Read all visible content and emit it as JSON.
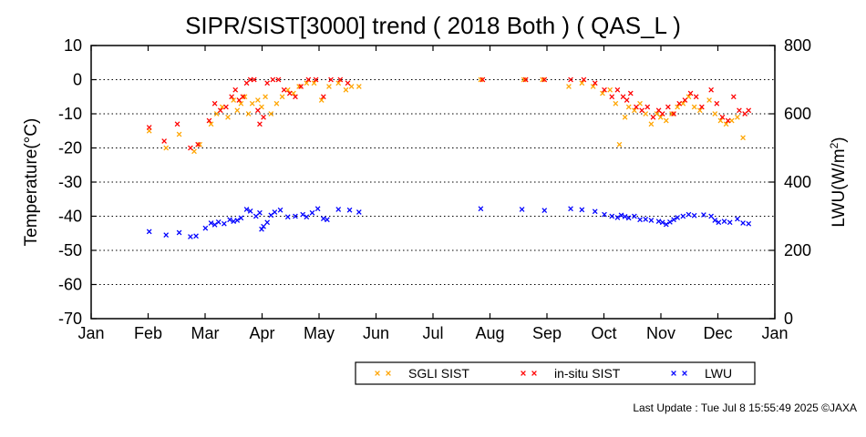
{
  "chart_data": {
    "type": "scatter",
    "title": "SIPR/SIST[3000] trend ( 2018 Both ) ( QAS_L )",
    "ylabel": "Temperature(°C)",
    "y2label_main": "LWU(W/m",
    "y2label_sup": "2",
    "y2label_end": ")",
    "ylim": [
      -70,
      10
    ],
    "y2lim": [
      0,
      800
    ],
    "yticks": [
      10,
      0,
      -10,
      -20,
      -30,
      -40,
      -50,
      -60,
      -70
    ],
    "y2ticks": [
      800,
      600,
      400,
      200,
      0
    ],
    "grid": "horizontal dotted at y = 0, -10, -20, -30, -40, -50, -60",
    "xlim": [
      "2018-01-01",
      "2019-01-01"
    ],
    "xticks": [
      "Jan",
      "Feb",
      "Mar",
      "Apr",
      "May",
      "Jun",
      "Jul",
      "Aug",
      "Sep",
      "Oct",
      "Nov",
      "Dec",
      "Jan"
    ],
    "legend_position": "bottom-right, below plot",
    "series": [
      {
        "name": "SGLI SIST",
        "color": "#ffa500",
        "axis": "left",
        "points": [
          [
            "2018-02-01",
            -15
          ],
          [
            "2018-02-10",
            -20
          ],
          [
            "2018-02-17",
            -16
          ],
          [
            "2018-02-25",
            -21
          ],
          [
            "2018-02-28",
            -19
          ],
          [
            "2018-03-06",
            -13
          ],
          [
            "2018-03-09",
            -10
          ],
          [
            "2018-03-12",
            -8
          ],
          [
            "2018-03-15",
            -11
          ],
          [
            "2018-03-18",
            -6
          ],
          [
            "2018-03-20",
            -9
          ],
          [
            "2018-03-22",
            -7
          ],
          [
            "2018-03-24",
            -5
          ],
          [
            "2018-03-26",
            -10
          ],
          [
            "2018-03-28",
            -7
          ],
          [
            "2018-03-31",
            -6
          ],
          [
            "2018-04-02",
            -8
          ],
          [
            "2018-04-04",
            -5
          ],
          [
            "2018-04-07",
            -10
          ],
          [
            "2018-04-10",
            -7
          ],
          [
            "2018-04-13",
            -5
          ],
          [
            "2018-04-16",
            -3
          ],
          [
            "2018-04-19",
            -4
          ],
          [
            "2018-04-22",
            -2
          ],
          [
            "2018-04-26",
            -1
          ],
          [
            "2018-04-30",
            -1
          ],
          [
            "2018-05-04",
            -6
          ],
          [
            "2018-05-08",
            -2
          ],
          [
            "2018-05-13",
            -1
          ],
          [
            "2018-05-17",
            -3
          ],
          [
            "2018-05-20",
            -2
          ],
          [
            "2018-05-24",
            -2
          ],
          [
            "2018-07-28",
            0
          ],
          [
            "2018-08-20",
            0
          ],
          [
            "2018-08-30",
            0
          ],
          [
            "2018-09-13",
            -2
          ],
          [
            "2018-09-20",
            -1
          ],
          [
            "2018-09-26",
            -2
          ],
          [
            "2018-10-01",
            -4
          ],
          [
            "2018-10-05",
            -3
          ],
          [
            "2018-10-08",
            -7
          ],
          [
            "2018-10-10",
            -19
          ],
          [
            "2018-10-13",
            -11
          ],
          [
            "2018-10-15",
            -8
          ],
          [
            "2018-10-18",
            -9
          ],
          [
            "2018-10-21",
            -7
          ],
          [
            "2018-10-24",
            -10
          ],
          [
            "2018-10-27",
            -13
          ],
          [
            "2018-10-30",
            -10
          ],
          [
            "2018-11-01",
            -11
          ],
          [
            "2018-11-04",
            -12
          ],
          [
            "2018-11-07",
            -10
          ],
          [
            "2018-11-10",
            -8
          ],
          [
            "2018-11-13",
            -7
          ],
          [
            "2018-11-16",
            -5
          ],
          [
            "2018-11-19",
            -8
          ],
          [
            "2018-11-22",
            -9
          ],
          [
            "2018-11-27",
            -6
          ],
          [
            "2018-11-30",
            -10
          ],
          [
            "2018-12-03",
            -12
          ],
          [
            "2018-12-06",
            -13
          ],
          [
            "2018-12-09",
            -12
          ],
          [
            "2018-12-12",
            -11
          ],
          [
            "2018-12-15",
            -17
          ]
        ]
      },
      {
        "name": "in-situ SIST",
        "color": "#ff0000",
        "axis": "left",
        "points": [
          [
            "2018-02-01",
            -14
          ],
          [
            "2018-02-09",
            -18
          ],
          [
            "2018-02-16",
            -13
          ],
          [
            "2018-02-23",
            -20
          ],
          [
            "2018-02-27",
            -19
          ],
          [
            "2018-03-05",
            -12
          ],
          [
            "2018-03-08",
            -7
          ],
          [
            "2018-03-11",
            -9
          ],
          [
            "2018-03-14",
            -8
          ],
          [
            "2018-03-17",
            -5
          ],
          [
            "2018-03-19",
            -3
          ],
          [
            "2018-03-21",
            -6
          ],
          [
            "2018-03-23",
            -5
          ],
          [
            "2018-03-25",
            -1
          ],
          [
            "2018-03-27",
            0
          ],
          [
            "2018-03-29",
            0
          ],
          [
            "2018-03-31",
            -9
          ],
          [
            "2018-04-01",
            -13
          ],
          [
            "2018-04-03",
            -11
          ],
          [
            "2018-04-05",
            -1
          ],
          [
            "2018-04-08",
            0
          ],
          [
            "2018-04-11",
            0
          ],
          [
            "2018-04-14",
            -3
          ],
          [
            "2018-04-17",
            -4
          ],
          [
            "2018-04-20",
            -5
          ],
          [
            "2018-04-23",
            -2
          ],
          [
            "2018-04-27",
            0
          ],
          [
            "2018-05-01",
            0
          ],
          [
            "2018-05-05",
            -5
          ],
          [
            "2018-05-09",
            0
          ],
          [
            "2018-05-14",
            0
          ],
          [
            "2018-05-18",
            -1
          ],
          [
            "2018-07-29",
            0
          ],
          [
            "2018-08-21",
            0
          ],
          [
            "2018-08-31",
            0
          ],
          [
            "2018-09-14",
            0
          ],
          [
            "2018-09-21",
            0
          ],
          [
            "2018-09-27",
            -1
          ],
          [
            "2018-10-02",
            -3
          ],
          [
            "2018-10-06",
            -5
          ],
          [
            "2018-10-09",
            -3
          ],
          [
            "2018-10-12",
            -5
          ],
          [
            "2018-10-14",
            -6
          ],
          [
            "2018-10-16",
            -4
          ],
          [
            "2018-10-19",
            -8
          ],
          [
            "2018-10-22",
            -9
          ],
          [
            "2018-10-25",
            -8
          ],
          [
            "2018-10-28",
            -11
          ],
          [
            "2018-10-31",
            -9
          ],
          [
            "2018-11-02",
            -10
          ],
          [
            "2018-11-05",
            -8
          ],
          [
            "2018-11-08",
            -10
          ],
          [
            "2018-11-11",
            -7
          ],
          [
            "2018-11-14",
            -6
          ],
          [
            "2018-11-17",
            -4
          ],
          [
            "2018-11-20",
            -5
          ],
          [
            "2018-11-23",
            -8
          ],
          [
            "2018-11-28",
            -3
          ],
          [
            "2018-12-01",
            -7
          ],
          [
            "2018-12-04",
            -11
          ],
          [
            "2018-12-07",
            -12
          ],
          [
            "2018-12-10",
            -5
          ],
          [
            "2018-12-13",
            -9
          ],
          [
            "2018-12-16",
            -10
          ],
          [
            "2018-12-18",
            -9
          ]
        ]
      },
      {
        "name": "LWU",
        "color": "#0000ff",
        "axis": "right",
        "points": [
          [
            "2018-02-01",
            255
          ],
          [
            "2018-02-10",
            245
          ],
          [
            "2018-02-17",
            252
          ],
          [
            "2018-02-23",
            240
          ],
          [
            "2018-02-26",
            242
          ],
          [
            "2018-03-03",
            265
          ],
          [
            "2018-03-06",
            280
          ],
          [
            "2018-03-08",
            275
          ],
          [
            "2018-03-10",
            283
          ],
          [
            "2018-03-13",
            278
          ],
          [
            "2018-03-16",
            290
          ],
          [
            "2018-03-18",
            285
          ],
          [
            "2018-03-20",
            288
          ],
          [
            "2018-03-22",
            295
          ],
          [
            "2018-03-25",
            320
          ],
          [
            "2018-03-27",
            315
          ],
          [
            "2018-03-30",
            300
          ],
          [
            "2018-04-01",
            310
          ],
          [
            "2018-04-02",
            262
          ],
          [
            "2018-04-03",
            270
          ],
          [
            "2018-04-05",
            282
          ],
          [
            "2018-04-07",
            303
          ],
          [
            "2018-04-09",
            312
          ],
          [
            "2018-04-12",
            318
          ],
          [
            "2018-04-16",
            298
          ],
          [
            "2018-04-20",
            300
          ],
          [
            "2018-04-24",
            305
          ],
          [
            "2018-04-26",
            298
          ],
          [
            "2018-04-29",
            310
          ],
          [
            "2018-05-02",
            322
          ],
          [
            "2018-05-05",
            293
          ],
          [
            "2018-05-07",
            290
          ],
          [
            "2018-05-13",
            320
          ],
          [
            "2018-05-19",
            318
          ],
          [
            "2018-05-24",
            312
          ],
          [
            "2018-07-28",
            322
          ],
          [
            "2018-08-19",
            320
          ],
          [
            "2018-08-31",
            317
          ],
          [
            "2018-09-14",
            322
          ],
          [
            "2018-09-20",
            319
          ],
          [
            "2018-09-27",
            314
          ],
          [
            "2018-10-02",
            305
          ],
          [
            "2018-10-06",
            300
          ],
          [
            "2018-10-09",
            296
          ],
          [
            "2018-10-11",
            303
          ],
          [
            "2018-10-13",
            299
          ],
          [
            "2018-10-15",
            295
          ],
          [
            "2018-10-18",
            300
          ],
          [
            "2018-10-21",
            290
          ],
          [
            "2018-10-24",
            291
          ],
          [
            "2018-10-27",
            288
          ],
          [
            "2018-10-31",
            285
          ],
          [
            "2018-11-02",
            282
          ],
          [
            "2018-11-04",
            276
          ],
          [
            "2018-11-06",
            283
          ],
          [
            "2018-11-08",
            290
          ],
          [
            "2018-11-10",
            296
          ],
          [
            "2018-11-13",
            300
          ],
          [
            "2018-11-16",
            305
          ],
          [
            "2018-11-19",
            302
          ],
          [
            "2018-11-24",
            304
          ],
          [
            "2018-11-28",
            300
          ],
          [
            "2018-11-30",
            288
          ],
          [
            "2018-12-02",
            282
          ],
          [
            "2018-12-05",
            285
          ],
          [
            "2018-12-08",
            282
          ],
          [
            "2018-12-12",
            292
          ],
          [
            "2018-12-15",
            280
          ],
          [
            "2018-12-18",
            278
          ]
        ]
      }
    ]
  },
  "footer": {
    "last_update": "Last Update : Tue Jul  8 15:55:49 2025  ©JAXA"
  }
}
